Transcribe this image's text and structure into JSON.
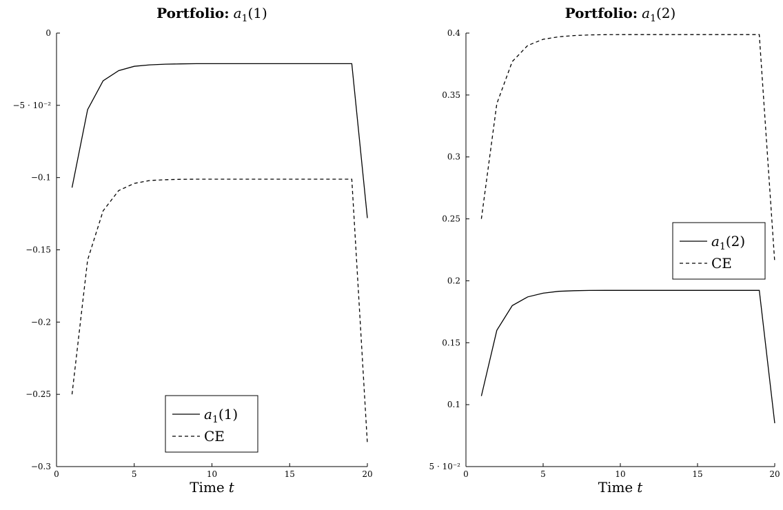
{
  "chart_data": [
    {
      "type": "line",
      "title_bold": "Portfolio:",
      "title_math": "a",
      "title_sub": "1",
      "title_paren": "(1)",
      "xlabel_text": "Time",
      "xlabel_var": "t",
      "xlim": [
        0,
        20
      ],
      "ylim": [
        -0.3,
        0
      ],
      "grid": false,
      "legend_placement": "bottom-center",
      "x_ticks": [
        0,
        5,
        10,
        15,
        20
      ],
      "x_tick_labels": [
        "0",
        "5",
        "10",
        "15",
        "20"
      ],
      "y_ticks": [
        0,
        -0.05,
        -0.1,
        -0.15,
        -0.2,
        -0.25,
        -0.3
      ],
      "y_tick_labels": [
        "0",
        "−5 · 10⁻²",
        "−0.1",
        "−0.15",
        "−0.2",
        "−0.25",
        "−0.3"
      ],
      "series": [
        {
          "name": "a1(1)",
          "legend_math": "a",
          "legend_sub": "1",
          "legend_paren": "(1)",
          "style": "solid",
          "x": [
            1,
            2,
            3,
            4,
            5,
            6,
            7,
            8,
            9,
            10,
            11,
            12,
            13,
            14,
            15,
            16,
            17,
            18,
            19,
            20
          ],
          "y": [
            -0.107,
            -0.053,
            -0.033,
            -0.026,
            -0.023,
            -0.022,
            -0.0215,
            -0.0213,
            -0.0212,
            -0.0212,
            -0.0212,
            -0.0212,
            -0.0212,
            -0.0212,
            -0.0212,
            -0.0212,
            -0.0212,
            -0.0212,
            -0.0212,
            -0.128
          ]
        },
        {
          "name": "CE",
          "legend_text": "CE",
          "style": "dashed",
          "x": [
            1,
            2,
            3,
            4,
            5,
            6,
            7,
            8,
            9,
            10,
            11,
            12,
            13,
            14,
            15,
            16,
            17,
            18,
            19,
            20
          ],
          "y": [
            -0.25,
            -0.157,
            -0.123,
            -0.109,
            -0.104,
            -0.102,
            -0.1015,
            -0.1012,
            -0.1011,
            -0.1011,
            -0.1011,
            -0.1011,
            -0.1011,
            -0.1011,
            -0.1011,
            -0.1011,
            -0.1011,
            -0.1011,
            -0.1011,
            -0.284
          ]
        }
      ]
    },
    {
      "type": "line",
      "title_bold": "Portfolio:",
      "title_math": "a",
      "title_sub": "1",
      "title_paren": "(2)",
      "xlabel_text": "Time",
      "xlabel_var": "t",
      "xlim": [
        0,
        20
      ],
      "ylim": [
        0.05,
        0.4
      ],
      "grid": false,
      "legend_placement": "center-right",
      "x_ticks": [
        0,
        5,
        10,
        15,
        20
      ],
      "x_tick_labels": [
        "0",
        "5",
        "10",
        "15",
        "20"
      ],
      "y_ticks": [
        0.05,
        0.1,
        0.15,
        0.2,
        0.25,
        0.3,
        0.35,
        0.4
      ],
      "y_tick_labels": [
        "5 · 10⁻²",
        "0.1",
        "0.15",
        "0.2",
        "0.25",
        "0.3",
        "0.35",
        "0.4"
      ],
      "series": [
        {
          "name": "a1(2)",
          "legend_math": "a",
          "legend_sub": "1",
          "legend_paren": "(2)",
          "style": "solid",
          "x": [
            1,
            2,
            3,
            4,
            5,
            6,
            7,
            8,
            9,
            10,
            11,
            12,
            13,
            14,
            15,
            16,
            17,
            18,
            19,
            20
          ],
          "y": [
            0.107,
            0.16,
            0.18,
            0.187,
            0.19,
            0.1915,
            0.192,
            0.1922,
            0.1923,
            0.1923,
            0.1923,
            0.1923,
            0.1923,
            0.1923,
            0.1923,
            0.1923,
            0.1923,
            0.1923,
            0.1923,
            0.085
          ]
        },
        {
          "name": "CE",
          "legend_text": "CE",
          "style": "dashed",
          "x": [
            1,
            2,
            3,
            4,
            5,
            6,
            7,
            8,
            9,
            10,
            11,
            12,
            13,
            14,
            15,
            16,
            17,
            18,
            19,
            20
          ],
          "y": [
            0.25,
            0.343,
            0.377,
            0.39,
            0.395,
            0.397,
            0.398,
            0.3985,
            0.3987,
            0.3988,
            0.3988,
            0.3988,
            0.3988,
            0.3988,
            0.3988,
            0.3988,
            0.3988,
            0.3988,
            0.3988,
            0.215
          ]
        }
      ]
    }
  ]
}
